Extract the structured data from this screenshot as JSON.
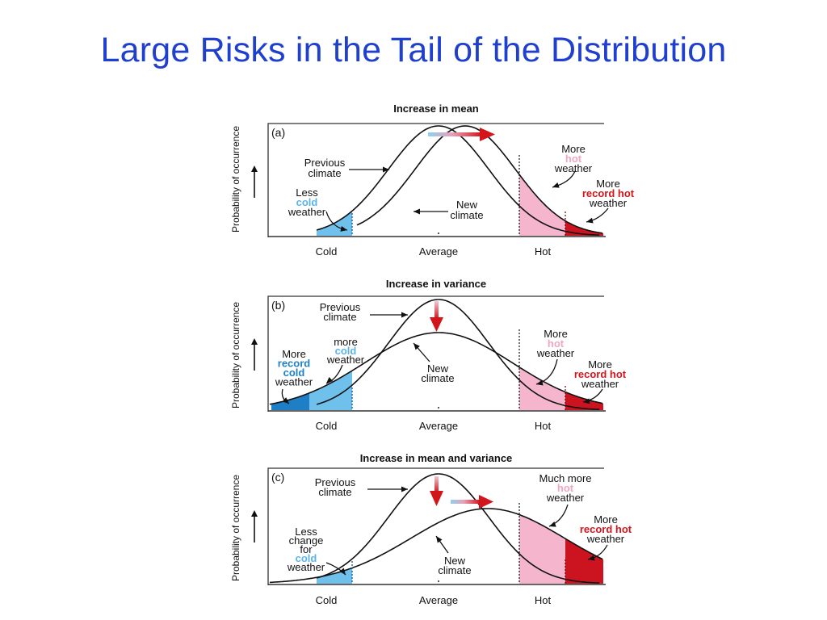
{
  "slide": {
    "title": "Large Risks in the Tail of the Distribution"
  },
  "colors": {
    "title": "#1f3fcf",
    "cold_fill": "#6fc1ec",
    "record_cold_fill": "#1e7fc6",
    "hot_fill": "#f5b5cc",
    "record_hot_fill": "#cc1420",
    "arrow": "#d3151b",
    "arrow_start": "#8fd0f0"
  },
  "axis": {
    "ylabel": "Probability of occurrence",
    "ticks": {
      "cold": "Cold",
      "average": "Average",
      "hot": "Hot"
    }
  },
  "panels": [
    {
      "letter": "(a)",
      "title": "Increase in mean",
      "labels": {
        "prev": [
          "Previous",
          "climate"
        ],
        "new": [
          "New",
          "climate"
        ],
        "cold": [
          "Less",
          "cold",
          "weather"
        ],
        "hot": [
          "More",
          "hot",
          "weather"
        ],
        "rhot": [
          "More",
          "record hot",
          "weather"
        ]
      }
    },
    {
      "letter": "(b)",
      "title": "Increase in variance",
      "labels": {
        "prev": [
          "Previous",
          "climate"
        ],
        "new": [
          "New",
          "climate"
        ],
        "cold": [
          "more",
          "cold",
          "weather"
        ],
        "rcold": [
          "More",
          "record",
          "cold",
          "weather"
        ],
        "hot": [
          "More",
          "hot",
          "weather"
        ],
        "rhot": [
          "More",
          "record hot",
          "weather"
        ]
      }
    },
    {
      "letter": "(c)",
      "title": "Increase in mean and variance",
      "labels": {
        "prev": [
          "Previous",
          "climate"
        ],
        "new": [
          "New",
          "climate"
        ],
        "cold": [
          "Less",
          "change",
          "for",
          "cold",
          "weather"
        ],
        "hot": [
          "Much more",
          "hot",
          "weather"
        ],
        "rhot": [
          "More",
          "record hot",
          "weather"
        ]
      }
    }
  ]
}
